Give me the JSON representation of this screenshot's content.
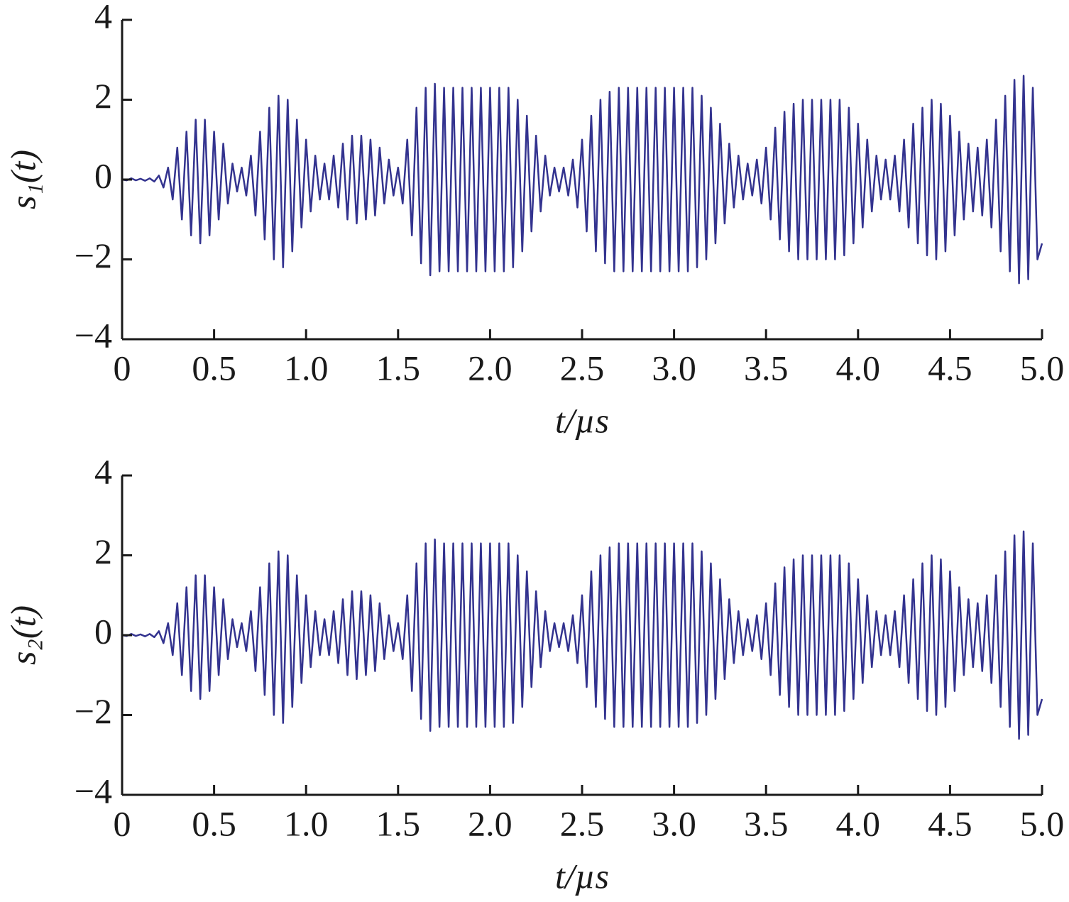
{
  "chart_data": [
    {
      "type": "line",
      "ylabel": "s₁(t)",
      "xlabel": "t/µs",
      "xlim": [
        0,
        5
      ],
      "ylim": [
        -4,
        4
      ],
      "xticks": [
        0,
        0.5,
        {
          "value": 1,
          "label": "1.0"
        },
        1.5,
        {
          "value": 2,
          "label": "2.0"
        },
        2.5,
        {
          "value": 3,
          "label": "3.0"
        },
        3.5,
        {
          "value": 4,
          "label": "4.0"
        },
        4.5,
        {
          "value": 5,
          "label": "5.0"
        }
      ],
      "yticks": [
        {
          "value": -4,
          "label": "−4"
        },
        {
          "value": -2,
          "label": "−2"
        },
        0,
        2,
        4
      ],
      "grid": false,
      "x": [
        0,
        0.025,
        0.05,
        0.075,
        0.1,
        0.125,
        0.15,
        0.175,
        0.2,
        0.225,
        0.25,
        0.275,
        0.3,
        0.325,
        0.35,
        0.375,
        0.4,
        0.425,
        0.45,
        0.475,
        0.5,
        0.525,
        0.55,
        0.575,
        0.6,
        0.625,
        0.65,
        0.675,
        0.7,
        0.725,
        0.75,
        0.775,
        0.8,
        0.825,
        0.85,
        0.875,
        0.9,
        0.925,
        0.95,
        0.975,
        1,
        1.025,
        1.05,
        1.075,
        1.1,
        1.125,
        1.15,
        1.175,
        1.2,
        1.225,
        1.25,
        1.275,
        1.3,
        1.325,
        1.35,
        1.375,
        1.4,
        1.425,
        1.45,
        1.475,
        1.5,
        1.525,
        1.55,
        1.575,
        1.6,
        1.625,
        1.65,
        1.675,
        1.7,
        1.725,
        1.75,
        1.775,
        1.8,
        1.825,
        1.85,
        1.875,
        1.9,
        1.925,
        1.95,
        1.975,
        2,
        2.025,
        2.05,
        2.075,
        2.1,
        2.125,
        2.15,
        2.175,
        2.2,
        2.225,
        2.25,
        2.275,
        2.3,
        2.325,
        2.35,
        2.375,
        2.4,
        2.425,
        2.45,
        2.475,
        2.5,
        2.525,
        2.55,
        2.575,
        2.6,
        2.625,
        2.65,
        2.675,
        2.7,
        2.725,
        2.75,
        2.775,
        2.8,
        2.825,
        2.85,
        2.875,
        2.9,
        2.925,
        2.95,
        2.975,
        3,
        3.025,
        3.05,
        3.075,
        3.1,
        3.125,
        3.15,
        3.175,
        3.2,
        3.225,
        3.25,
        3.275,
        3.3,
        3.325,
        3.35,
        3.375,
        3.4,
        3.425,
        3.45,
        3.475,
        3.5,
        3.525,
        3.55,
        3.575,
        3.6,
        3.625,
        3.65,
        3.675,
        3.7,
        3.725,
        3.75,
        3.775,
        3.8,
        3.825,
        3.85,
        3.875,
        3.9,
        3.925,
        3.95,
        3.975,
        4,
        4.025,
        4.05,
        4.075,
        4.1,
        4.125,
        4.15,
        4.175,
        4.2,
        4.225,
        4.25,
        4.275,
        4.3,
        4.325,
        4.35,
        4.375,
        4.4,
        4.425,
        4.45,
        4.475,
        4.5,
        4.525,
        4.55,
        4.575,
        4.6,
        4.625,
        4.65,
        4.675,
        4.7,
        4.725,
        4.75,
        4.775,
        4.8,
        4.825,
        4.85,
        4.875,
        4.9,
        4.925,
        4.95,
        4.975,
        5
      ],
      "series": [
        {
          "color": "#33338f",
          "values": [
            0,
            -0.02,
            0.03,
            -0.02,
            0.02,
            -0.03,
            0.03,
            -0.05,
            0.1,
            -0.2,
            0.3,
            -0.5,
            0.8,
            -1.0,
            1.2,
            -1.4,
            1.5,
            -1.6,
            1.5,
            -1.4,
            1.2,
            -1.0,
            0.9,
            -0.6,
            0.4,
            -0.3,
            0.3,
            -0.4,
            0.6,
            -0.9,
            1.2,
            -1.5,
            1.8,
            -2.0,
            2.1,
            -2.2,
            2.0,
            -1.8,
            1.5,
            -1.2,
            1.0,
            -0.8,
            0.6,
            -0.5,
            0.4,
            -0.5,
            0.6,
            -0.7,
            0.9,
            -1.0,
            1.1,
            -1.1,
            1.1,
            -1.0,
            1.0,
            -0.9,
            0.8,
            -0.6,
            0.5,
            -0.4,
            0.3,
            -0.6,
            1.0,
            -1.4,
            1.8,
            -2.1,
            2.3,
            -2.4,
            2.4,
            -2.3,
            2.3,
            -2.3,
            2.3,
            -2.3,
            2.3,
            -2.3,
            2.3,
            -2.3,
            2.3,
            -2.3,
            2.3,
            -2.3,
            2.3,
            -2.3,
            2.3,
            -2.2,
            2.0,
            -1.8,
            1.6,
            -1.3,
            1.1,
            -0.8,
            0.6,
            -0.4,
            0.3,
            -0.3,
            0.3,
            -0.4,
            0.5,
            -0.7,
            1.0,
            -1.3,
            1.6,
            -1.8,
            2.0,
            -2.1,
            2.2,
            -2.3,
            2.3,
            -2.3,
            2.3,
            -2.3,
            2.3,
            -2.3,
            2.3,
            -2.3,
            2.3,
            -2.3,
            2.3,
            -2.3,
            2.3,
            -2.3,
            2.3,
            -2.3,
            2.3,
            -2.2,
            2.1,
            -2.0,
            1.8,
            -1.6,
            1.4,
            -1.1,
            0.9,
            -0.7,
            0.6,
            -0.5,
            0.4,
            -0.4,
            0.5,
            -0.6,
            0.8,
            -1.0,
            1.3,
            -1.5,
            1.7,
            -1.8,
            1.9,
            -2.0,
            2.0,
            -2.0,
            2.0,
            -2.0,
            2.0,
            -2.0,
            2.0,
            -2.0,
            2.0,
            -1.9,
            1.8,
            -1.6,
            1.4,
            -1.2,
            1.0,
            -0.8,
            0.6,
            -0.5,
            0.5,
            -0.5,
            0.6,
            -0.8,
            1.0,
            -1.2,
            1.4,
            -1.6,
            1.8,
            -1.9,
            2.0,
            -2.0,
            1.9,
            -1.8,
            1.6,
            -1.4,
            1.2,
            -1.0,
            0.9,
            -0.8,
            0.8,
            -0.9,
            1.0,
            -1.2,
            1.5,
            -1.8,
            2.1,
            -2.3,
            2.5,
            -2.6,
            2.6,
            -2.5,
            2.3,
            -2.0,
            -1.6
          ]
        }
      ]
    },
    {
      "type": "line",
      "ylabel": "s₂(t)",
      "xlabel": "t/µs",
      "xlim": [
        0,
        5
      ],
      "ylim": [
        -4,
        4
      ],
      "xticks": [
        0,
        0.5,
        {
          "value": 1,
          "label": "1.0"
        },
        1.5,
        {
          "value": 2,
          "label": "2.0"
        },
        2.5,
        {
          "value": 3,
          "label": "3.0"
        },
        3.5,
        {
          "value": 4,
          "label": "4.0"
        },
        4.5,
        {
          "value": 5,
          "label": "5.0"
        }
      ],
      "yticks": [
        {
          "value": -4,
          "label": "−4"
        },
        {
          "value": -2,
          "label": "−2"
        },
        0,
        2,
        4
      ],
      "grid": false,
      "x": [
        0,
        0.025,
        0.05,
        0.075,
        0.1,
        0.125,
        0.15,
        0.175,
        0.2,
        0.225,
        0.25,
        0.275,
        0.3,
        0.325,
        0.35,
        0.375,
        0.4,
        0.425,
        0.45,
        0.475,
        0.5,
        0.525,
        0.55,
        0.575,
        0.6,
        0.625,
        0.65,
        0.675,
        0.7,
        0.725,
        0.75,
        0.775,
        0.8,
        0.825,
        0.85,
        0.875,
        0.9,
        0.925,
        0.95,
        0.975,
        1,
        1.025,
        1.05,
        1.075,
        1.1,
        1.125,
        1.15,
        1.175,
        1.2,
        1.225,
        1.25,
        1.275,
        1.3,
        1.325,
        1.35,
        1.375,
        1.4,
        1.425,
        1.45,
        1.475,
        1.5,
        1.525,
        1.55,
        1.575,
        1.6,
        1.625,
        1.65,
        1.675,
        1.7,
        1.725,
        1.75,
        1.775,
        1.8,
        1.825,
        1.85,
        1.875,
        1.9,
        1.925,
        1.95,
        1.975,
        2,
        2.025,
        2.05,
        2.075,
        2.1,
        2.125,
        2.15,
        2.175,
        2.2,
        2.225,
        2.25,
        2.275,
        2.3,
        2.325,
        2.35,
        2.375,
        2.4,
        2.425,
        2.45,
        2.475,
        2.5,
        2.525,
        2.55,
        2.575,
        2.6,
        2.625,
        2.65,
        2.675,
        2.7,
        2.725,
        2.75,
        2.775,
        2.8,
        2.825,
        2.85,
        2.875,
        2.9,
        2.925,
        2.95,
        2.975,
        3,
        3.025,
        3.05,
        3.075,
        3.1,
        3.125,
        3.15,
        3.175,
        3.2,
        3.225,
        3.25,
        3.275,
        3.3,
        3.325,
        3.35,
        3.375,
        3.4,
        3.425,
        3.45,
        3.475,
        3.5,
        3.525,
        3.55,
        3.575,
        3.6,
        3.625,
        3.65,
        3.675,
        3.7,
        3.725,
        3.75,
        3.775,
        3.8,
        3.825,
        3.85,
        3.875,
        3.9,
        3.925,
        3.95,
        3.975,
        4,
        4.025,
        4.05,
        4.075,
        4.1,
        4.125,
        4.15,
        4.175,
        4.2,
        4.225,
        4.25,
        4.275,
        4.3,
        4.325,
        4.35,
        4.375,
        4.4,
        4.425,
        4.45,
        4.475,
        4.5,
        4.525,
        4.55,
        4.575,
        4.6,
        4.625,
        4.65,
        4.675,
        4.7,
        4.725,
        4.75,
        4.775,
        4.8,
        4.825,
        4.85,
        4.875,
        4.9,
        4.925,
        4.95,
        4.975,
        5
      ],
      "series": [
        {
          "color": "#33338f",
          "values": [
            0,
            -0.02,
            0.03,
            -0.02,
            0.02,
            -0.03,
            0.03,
            -0.05,
            0.1,
            -0.2,
            0.3,
            -0.5,
            0.8,
            -1.0,
            1.2,
            -1.4,
            1.5,
            -1.6,
            1.5,
            -1.4,
            1.2,
            -1.0,
            0.9,
            -0.6,
            0.4,
            -0.3,
            0.3,
            -0.4,
            0.6,
            -0.9,
            1.2,
            -1.5,
            1.8,
            -2.0,
            2.1,
            -2.2,
            2.0,
            -1.8,
            1.5,
            -1.2,
            1.0,
            -0.8,
            0.6,
            -0.5,
            0.4,
            -0.5,
            0.6,
            -0.7,
            0.9,
            -1.0,
            1.1,
            -1.1,
            1.1,
            -1.0,
            1.0,
            -0.9,
            0.8,
            -0.6,
            0.5,
            -0.4,
            0.3,
            -0.6,
            1.0,
            -1.4,
            1.8,
            -2.1,
            2.3,
            -2.4,
            2.4,
            -2.3,
            2.3,
            -2.3,
            2.3,
            -2.3,
            2.3,
            -2.3,
            2.3,
            -2.3,
            2.3,
            -2.3,
            2.3,
            -2.3,
            2.3,
            -2.3,
            2.3,
            -2.2,
            2.0,
            -1.8,
            1.6,
            -1.3,
            1.1,
            -0.8,
            0.6,
            -0.4,
            0.3,
            -0.3,
            0.3,
            -0.4,
            0.5,
            -0.7,
            1.0,
            -1.3,
            1.6,
            -1.8,
            2.0,
            -2.1,
            2.2,
            -2.3,
            2.3,
            -2.3,
            2.3,
            -2.3,
            2.3,
            -2.3,
            2.3,
            -2.3,
            2.3,
            -2.3,
            2.3,
            -2.3,
            2.3,
            -2.3,
            2.3,
            -2.3,
            2.3,
            -2.2,
            2.1,
            -2.0,
            1.8,
            -1.6,
            1.4,
            -1.1,
            0.9,
            -0.7,
            0.6,
            -0.5,
            0.4,
            -0.4,
            0.5,
            -0.6,
            0.8,
            -1.0,
            1.3,
            -1.5,
            1.7,
            -1.8,
            1.9,
            -2.0,
            2.0,
            -2.0,
            2.0,
            -2.0,
            2.0,
            -2.0,
            2.0,
            -2.0,
            2.0,
            -1.9,
            1.8,
            -1.6,
            1.4,
            -1.2,
            1.0,
            -0.8,
            0.6,
            -0.5,
            0.5,
            -0.5,
            0.6,
            -0.8,
            1.0,
            -1.2,
            1.4,
            -1.6,
            1.8,
            -1.9,
            2.0,
            -2.0,
            1.9,
            -1.8,
            1.6,
            -1.4,
            1.2,
            -1.0,
            0.9,
            -0.8,
            0.8,
            -0.9,
            1.0,
            -1.2,
            1.5,
            -1.8,
            2.1,
            -2.3,
            2.5,
            -2.6,
            2.6,
            -2.5,
            2.3,
            -2.0,
            -1.6
          ]
        }
      ]
    }
  ]
}
